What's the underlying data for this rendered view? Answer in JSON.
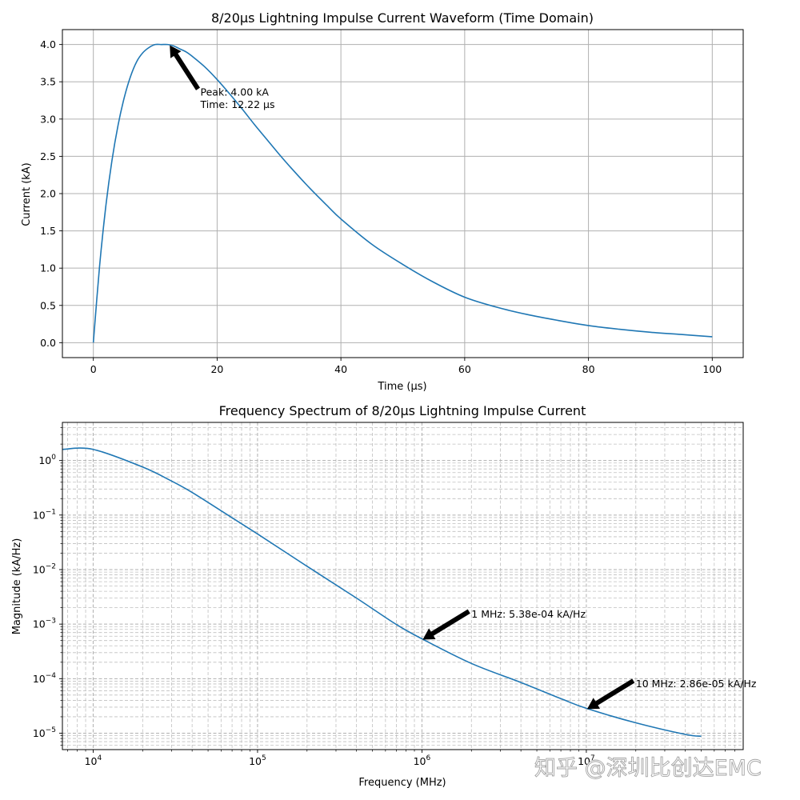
{
  "colors": {
    "line": "#1f77b4",
    "grid": "#b0b0b0",
    "arrow": "#000000"
  },
  "watermark": "知乎 @深圳比创达EMC",
  "chart_data": [
    {
      "type": "line",
      "title": "8/20μs Lightning Impulse Current Waveform (Time Domain)",
      "xlabel": "Time (μs)",
      "ylabel": "Current (kA)",
      "xlim": [
        -5,
        105
      ],
      "ylim": [
        -0.2,
        4.2
      ],
      "xticks": [
        0,
        20,
        40,
        60,
        80,
        100
      ],
      "xtick_labels": [
        "0",
        "20",
        "40",
        "60",
        "80",
        "100"
      ],
      "yticks": [
        0,
        0.5,
        1,
        1.5,
        2,
        2.5,
        3,
        3.5,
        4
      ],
      "ytick_labels": [
        "0.0",
        "0.5",
        "1.0",
        "1.5",
        "2.0",
        "2.5",
        "3.0",
        "3.5",
        "4.0"
      ],
      "grid": true,
      "series": [
        {
          "x": [
            0,
            1,
            2,
            3,
            4,
            5,
            6,
            7,
            8,
            9,
            10,
            11,
            12,
            13,
            14,
            15,
            16,
            18,
            20,
            22,
            24,
            26,
            28,
            30,
            32,
            35,
            38,
            40,
            45,
            50,
            55,
            60,
            65,
            70,
            75,
            80,
            85,
            90,
            95,
            100
          ],
          "values": [
            0,
            1.02,
            1.82,
            2.44,
            2.92,
            3.29,
            3.57,
            3.77,
            3.89,
            3.96,
            4.0,
            4.0,
            4.0,
            3.98,
            3.94,
            3.9,
            3.84,
            3.7,
            3.53,
            3.34,
            3.14,
            2.93,
            2.73,
            2.53,
            2.34,
            2.07,
            1.82,
            1.66,
            1.32,
            1.05,
            0.81,
            0.61,
            0.48,
            0.38,
            0.3,
            0.23,
            0.18,
            0.14,
            0.11,
            0.08
          ]
        }
      ],
      "annotations": [
        {
          "lines": [
            "Peak: 4.00 kA",
            "Time: 12.22 μs"
          ],
          "point": [
            12.22,
            4.0
          ],
          "text_at": [
            17.3,
            3.36
          ]
        }
      ]
    },
    {
      "type": "line",
      "title": "Frequency Spectrum of 8/20μs Lightning Impulse Current",
      "xlabel": "Frequency (MHz)",
      "ylabel": "Magnitude (kA/Hz)",
      "xscale": "log",
      "yscale": "log",
      "xlim": [
        6500,
        90000000
      ],
      "ylim": [
        5e-06,
        5
      ],
      "xticks": [
        10000,
        100000,
        1000000,
        10000000
      ],
      "xtick_labels": [
        [
          "10",
          "4"
        ],
        [
          "10",
          "5"
        ],
        [
          "10",
          "6"
        ],
        [
          "10",
          "7"
        ]
      ],
      "yticks": [
        1e-05,
        0.0001,
        0.001,
        0.01,
        0.1,
        1
      ],
      "ytick_labels": [
        [
          "10",
          "−5"
        ],
        [
          "10",
          "−4"
        ],
        [
          "10",
          "−3"
        ],
        [
          "10",
          "−2"
        ],
        [
          "10",
          "−1"
        ],
        [
          "10",
          "0"
        ]
      ],
      "grid": true,
      "series": [
        {
          "x": [
            6500,
            10000,
            20000,
            30000,
            40000,
            60000,
            100000,
            200000,
            400000,
            700000,
            1000000,
            2000000,
            4000000,
            7000000,
            10000000,
            20000000,
            40000000,
            50000000
          ],
          "values": [
            1.6,
            1.6,
            0.76,
            0.42,
            0.26,
            0.12,
            0.045,
            0.0115,
            0.003,
            0.00098,
            0.000538,
            0.00019,
            8.5e-05,
            4.3e-05,
            2.86e-05,
            1.55e-05,
            9.5e-06,
            8.8e-06
          ]
        }
      ],
      "annotations": [
        {
          "lines": [
            "1 MHz: 5.38e-04 kA/Hz"
          ],
          "point": [
            1000000,
            0.000538
          ],
          "text_at": [
            2000000,
            0.0015
          ]
        },
        {
          "lines": [
            "10 MHz: 2.86e-05 kA/Hz"
          ],
          "point": [
            10000000,
            2.86e-05
          ],
          "text_at": [
            20000000,
            8e-05
          ]
        }
      ]
    }
  ]
}
